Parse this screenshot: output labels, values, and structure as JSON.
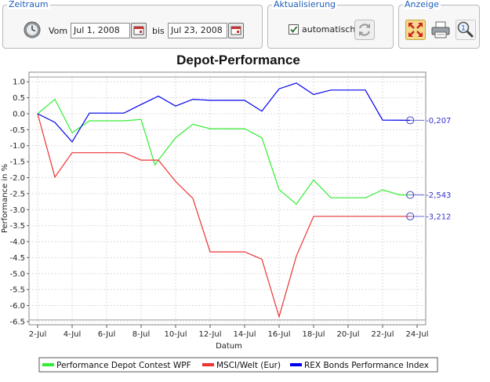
{
  "zeitraum": {
    "title": "Zeitraum",
    "vom_label": "Vom",
    "from_date": "Jul 1, 2008",
    "bis_label": "bis",
    "to_date": "Jul 23, 2008"
  },
  "aktualisierung": {
    "title": "Aktualisierung",
    "auto_label": "automatisch",
    "auto_checked": true
  },
  "anzeige": {
    "title": "Anzeige"
  },
  "icons": {
    "clock": "clock-icon",
    "calendar": "calendar-icon",
    "refresh": "refresh-icon",
    "fullscreen": "fullscreen-icon",
    "print": "printer-icon",
    "zoom": "magnifier-icon"
  },
  "colors": {
    "accent": "#1f5fb8",
    "series_green": "#33ee33",
    "series_red": "#ee3333",
    "series_blue": "#0000ee"
  },
  "chart_data": {
    "type": "line",
    "title": "Depot-Performance",
    "xlabel": "Datum",
    "ylabel": "Performance in %",
    "ylim": [
      -6.6,
      1.3
    ],
    "xlim": [
      1.5,
      24.5
    ],
    "grid": true,
    "legend_position": "bottom",
    "x_ticks": [
      2,
      4,
      6,
      8,
      10,
      12,
      14,
      16,
      18,
      20,
      22,
      24
    ],
    "x_tick_labels": [
      "2-Jul",
      "4-Jul",
      "6-Jul",
      "8-Jul",
      "10-Jul",
      "12-Jul",
      "14-Jul",
      "16-Jul",
      "18-Jul",
      "20-Jul",
      "22-Jul",
      "24-Jul"
    ],
    "y_ticks": [
      1.0,
      0.5,
      0.0,
      -0.5,
      -1.0,
      -1.5,
      -2.0,
      -2.5,
      -3.0,
      -3.5,
      -4.0,
      -4.5,
      -5.0,
      -5.5,
      -6.0,
      -6.5
    ],
    "y_tick_labels": [
      "1.0",
      "0.5",
      "0.0",
      "-0.5",
      "-1.0",
      "-1.5",
      "-2.0",
      "-2.5",
      "-3.0",
      "-3.5",
      "-4.0",
      "-4.5",
      "-5.0",
      "-5.5",
      "-6.0",
      "-6.5"
    ],
    "series": [
      {
        "name": "Performance Depot Contest WPF",
        "color": "#33ee33",
        "end_label": "-2,543",
        "points": [
          [
            2,
            0.0
          ],
          [
            3,
            0.45
          ],
          [
            4,
            -0.6
          ],
          [
            5,
            -0.22
          ],
          [
            7,
            -0.22
          ],
          [
            8,
            -0.18
          ],
          [
            8.8,
            -1.6
          ],
          [
            9,
            -1.45
          ],
          [
            10,
            -0.75
          ],
          [
            11,
            -0.33
          ],
          [
            12,
            -0.47
          ],
          [
            14,
            -0.47
          ],
          [
            15,
            -0.75
          ],
          [
            16,
            -2.37
          ],
          [
            17,
            -2.83
          ],
          [
            18,
            -2.07
          ],
          [
            19,
            -2.63
          ],
          [
            21,
            -2.63
          ],
          [
            22,
            -2.38
          ],
          [
            23,
            -2.54
          ],
          [
            23.6,
            -2.54
          ]
        ]
      },
      {
        "name": "MSCI/Welt (Eur)",
        "color": "#ee3333",
        "end_label": "-3,212",
        "points": [
          [
            2,
            0.0
          ],
          [
            3,
            -1.98
          ],
          [
            4,
            -1.22
          ],
          [
            7,
            -1.22
          ],
          [
            8,
            -1.45
          ],
          [
            9,
            -1.45
          ],
          [
            10,
            -2.12
          ],
          [
            11,
            -2.65
          ],
          [
            12,
            -4.32
          ],
          [
            14,
            -4.32
          ],
          [
            15,
            -4.55
          ],
          [
            16,
            -6.35
          ],
          [
            17,
            -4.45
          ],
          [
            18,
            -3.21
          ],
          [
            23.6,
            -3.21
          ]
        ]
      },
      {
        "name": "REX Bonds Performance Index",
        "color": "#0000ee",
        "end_label": "-0,207",
        "points": [
          [
            2,
            0.0
          ],
          [
            3,
            -0.27
          ],
          [
            4,
            -0.88
          ],
          [
            5,
            0.02
          ],
          [
            7,
            0.02
          ],
          [
            8,
            0.29
          ],
          [
            9,
            0.55
          ],
          [
            10,
            0.24
          ],
          [
            11,
            0.45
          ],
          [
            12,
            0.42
          ],
          [
            14,
            0.42
          ],
          [
            15,
            0.08
          ],
          [
            16,
            0.78
          ],
          [
            17,
            0.96
          ],
          [
            18,
            0.6
          ],
          [
            19,
            0.74
          ],
          [
            21,
            0.74
          ],
          [
            22,
            -0.2
          ],
          [
            23.6,
            -0.207
          ]
        ]
      }
    ]
  }
}
